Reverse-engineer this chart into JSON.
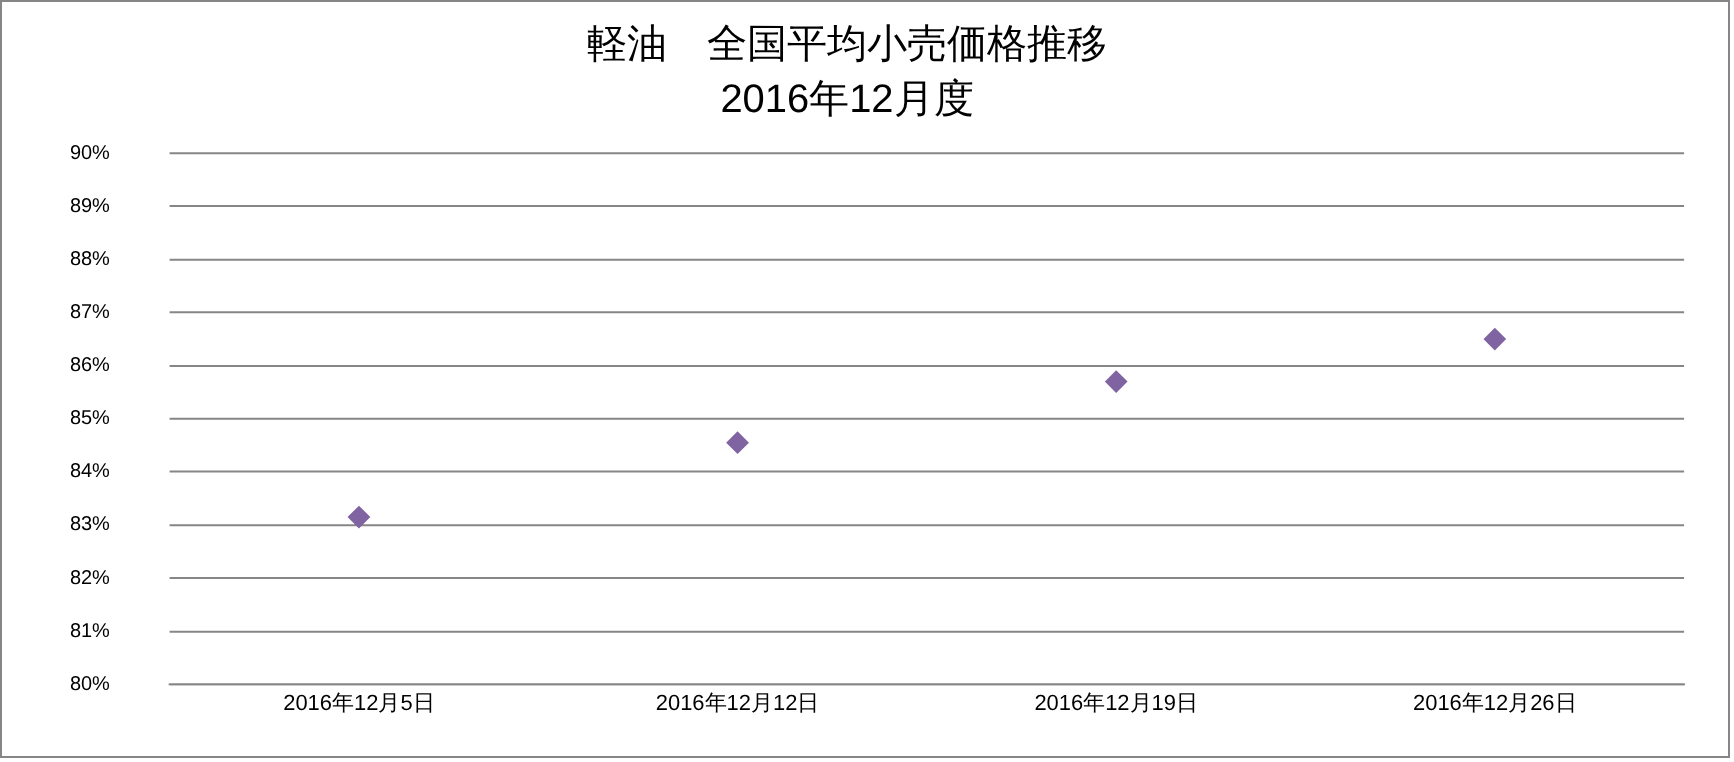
{
  "chart_data": {
    "type": "scatter",
    "title": "軽油　全国平均小売価格推移",
    "subtitle": "2016年12月度",
    "categories": [
      "2016年12月5日",
      "2016年12月12日",
      "2016年12月19日",
      "2016年12月26日"
    ],
    "series": [
      {
        "color": "#8064a2",
        "values": [
          83.15,
          84.55,
          85.7,
          86.5
        ]
      }
    ],
    "ylim": [
      80,
      90
    ],
    "yticks": [
      {
        "value": 80,
        "label": "80%"
      },
      {
        "value": 81,
        "label": "81%"
      },
      {
        "value": 82,
        "label": "82%"
      },
      {
        "value": 83,
        "label": "83%"
      },
      {
        "value": 84,
        "label": "84%"
      },
      {
        "value": 85,
        "label": "85%"
      },
      {
        "value": 86,
        "label": "86%"
      },
      {
        "value": 87,
        "label": "87%"
      },
      {
        "value": 88,
        "label": "88%"
      },
      {
        "value": 89,
        "label": "89%"
      },
      {
        "value": 90,
        "label": "90%"
      }
    ],
    "grid": "y",
    "marker": "diamond",
    "legend": false
  }
}
